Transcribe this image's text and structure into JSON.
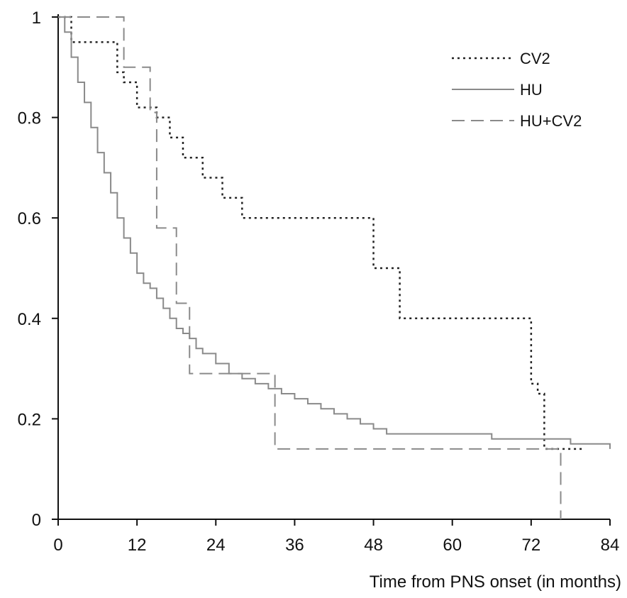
{
  "chart_data": {
    "type": "line",
    "title": "",
    "xlabel": "Time from PNS onset (in months)",
    "ylabel": "",
    "xlim": [
      0,
      84
    ],
    "ylim": [
      0,
      1
    ],
    "xticks": [
      0,
      12,
      24,
      36,
      48,
      60,
      72,
      84
    ],
    "yticks": [
      0,
      0.2,
      0.4,
      0.6,
      0.8,
      1
    ],
    "ytick_labels": [
      "0",
      "0.2",
      "0.4",
      "0.6",
      "0.8",
      "1"
    ],
    "grid": false,
    "legend": "top-right",
    "step": true,
    "series": [
      {
        "name": "CV2",
        "style": "dotted",
        "color": "#222222",
        "x": [
          0,
          2,
          9,
          10,
          12,
          15,
          17,
          19,
          22,
          25,
          28,
          48,
          52,
          72,
          73,
          74,
          80
        ],
        "y": [
          1,
          0.95,
          0.89,
          0.87,
          0.82,
          0.8,
          0.76,
          0.72,
          0.68,
          0.64,
          0.6,
          0.5,
          0.4,
          0.27,
          0.25,
          0.14,
          0.14
        ]
      },
      {
        "name": "HU",
        "style": "solid",
        "color": "#8a8a8a",
        "x": [
          0,
          1,
          2,
          3,
          4,
          5,
          6,
          7,
          8,
          9,
          10,
          11,
          12,
          13,
          14,
          15,
          16,
          17,
          18,
          19,
          20,
          21,
          22,
          24,
          26,
          28,
          30,
          32,
          34,
          36,
          38,
          40,
          42,
          44,
          46,
          48,
          50,
          56,
          60,
          64,
          66,
          72,
          78,
          80,
          84
        ],
        "y": [
          1,
          0.97,
          0.92,
          0.87,
          0.83,
          0.78,
          0.73,
          0.69,
          0.65,
          0.6,
          0.56,
          0.53,
          0.49,
          0.47,
          0.46,
          0.44,
          0.42,
          0.4,
          0.38,
          0.37,
          0.36,
          0.34,
          0.33,
          0.31,
          0.29,
          0.28,
          0.27,
          0.26,
          0.25,
          0.24,
          0.23,
          0.22,
          0.21,
          0.2,
          0.19,
          0.18,
          0.17,
          0.17,
          0.17,
          0.17,
          0.16,
          0.16,
          0.15,
          0.15,
          0.14
        ]
      },
      {
        "name": "HU+CV2",
        "style": "dashed",
        "color": "#8a8a8a",
        "x": [
          0,
          10,
          14,
          15,
          18,
          19,
          20,
          33,
          76,
          76.5
        ],
        "y": [
          1,
          0.9,
          0.81,
          0.58,
          0.43,
          0.43,
          0.29,
          0.14,
          0.14,
          0
        ]
      }
    ]
  }
}
